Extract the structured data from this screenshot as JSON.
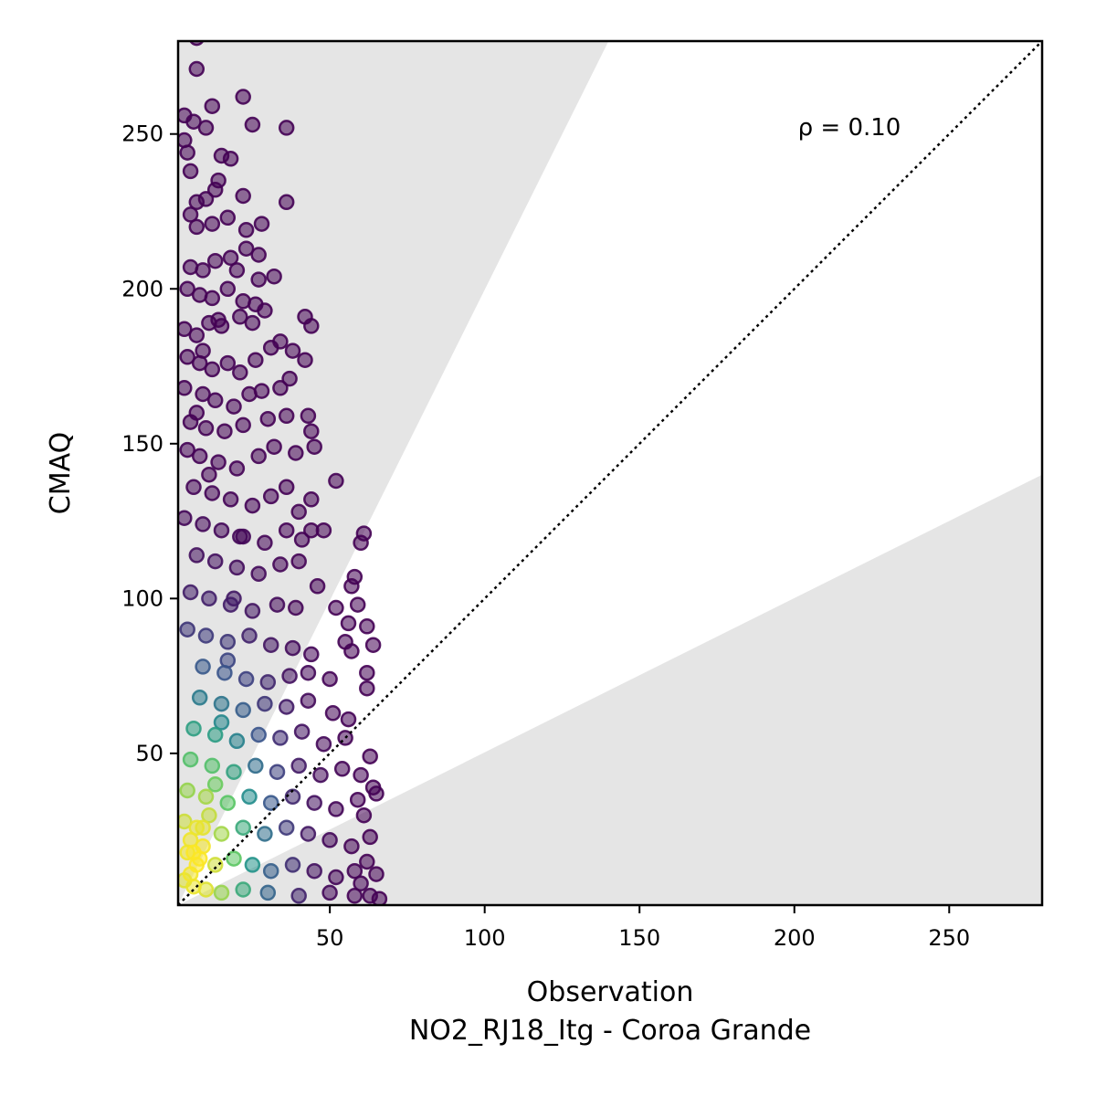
{
  "chart_data": {
    "type": "scatter",
    "title": "",
    "xlabel": "Observation",
    "xlabel_sub": "NO2_RJ18_Itg - Coroa Grande",
    "ylabel": "CMAQ",
    "xlim": [
      1,
      280
    ],
    "ylim": [
      1,
      280
    ],
    "x_ticks": [
      50,
      100,
      150,
      200,
      250
    ],
    "y_ticks": [
      50,
      100,
      150,
      200,
      250
    ],
    "x_tick_labels": [
      "50",
      "100",
      "150",
      "200",
      "250"
    ],
    "y_tick_labels": [
      "50",
      "100",
      "150",
      "200",
      "250"
    ],
    "annotation": "ρ = 0.10",
    "reference_line": {
      "type": "1:1",
      "style": "dotted",
      "color": "#000000"
    },
    "factor_of_2_band": {
      "upper_slope": 2,
      "lower_slope": 0.5,
      "outside_fill": "#e5e5e5"
    },
    "grid": false,
    "legend": "none",
    "colormap": "viridis",
    "marker_alpha": 0.55,
    "points": [
      [
        7,
        281
      ],
      [
        7,
        271
      ],
      [
        3,
        256
      ],
      [
        6,
        254
      ],
      [
        10,
        252
      ],
      [
        12,
        259
      ],
      [
        22,
        262
      ],
      [
        25,
        253
      ],
      [
        36,
        252
      ],
      [
        3,
        248
      ],
      [
        4,
        244
      ],
      [
        5,
        238
      ],
      [
        15,
        243
      ],
      [
        18,
        242
      ],
      [
        7,
        228
      ],
      [
        10,
        229
      ],
      [
        13,
        232
      ],
      [
        14,
        235
      ],
      [
        22,
        230
      ],
      [
        36,
        228
      ],
      [
        5,
        224
      ],
      [
        7,
        220
      ],
      [
        12,
        221
      ],
      [
        17,
        223
      ],
      [
        23,
        219
      ],
      [
        28,
        221
      ],
      [
        18,
        210
      ],
      [
        23,
        213
      ],
      [
        27,
        211
      ],
      [
        5,
        207
      ],
      [
        9,
        206
      ],
      [
        13,
        209
      ],
      [
        20,
        206
      ],
      [
        27,
        203
      ],
      [
        32,
        204
      ],
      [
        4,
        200
      ],
      [
        8,
        198
      ],
      [
        12,
        197
      ],
      [
        17,
        200
      ],
      [
        22,
        196
      ],
      [
        26,
        195
      ],
      [
        29,
        193
      ],
      [
        3,
        187
      ],
      [
        7,
        185
      ],
      [
        11,
        189
      ],
      [
        15,
        188
      ],
      [
        21,
        191
      ],
      [
        25,
        189
      ],
      [
        42,
        191
      ],
      [
        44,
        188
      ],
      [
        4,
        178
      ],
      [
        8,
        176
      ],
      [
        12,
        174
      ],
      [
        17,
        176
      ],
      [
        21,
        173
      ],
      [
        26,
        177
      ],
      [
        31,
        181
      ],
      [
        34,
        183
      ],
      [
        38,
        180
      ],
      [
        42,
        177
      ],
      [
        3,
        168
      ],
      [
        9,
        166
      ],
      [
        13,
        164
      ],
      [
        19,
        162
      ],
      [
        24,
        166
      ],
      [
        28,
        167
      ],
      [
        34,
        168
      ],
      [
        37,
        171
      ],
      [
        5,
        157
      ],
      [
        10,
        155
      ],
      [
        16,
        154
      ],
      [
        22,
        156
      ],
      [
        30,
        158
      ],
      [
        36,
        159
      ],
      [
        43,
        159
      ],
      [
        4,
        148
      ],
      [
        8,
        146
      ],
      [
        14,
        144
      ],
      [
        20,
        142
      ],
      [
        27,
        146
      ],
      [
        32,
        149
      ],
      [
        39,
        147
      ],
      [
        44,
        154
      ],
      [
        45,
        149
      ],
      [
        52,
        138
      ],
      [
        6,
        136
      ],
      [
        12,
        134
      ],
      [
        18,
        132
      ],
      [
        25,
        130
      ],
      [
        31,
        133
      ],
      [
        36,
        136
      ],
      [
        40,
        128
      ],
      [
        44,
        132
      ],
      [
        3,
        126
      ],
      [
        9,
        124
      ],
      [
        15,
        122
      ],
      [
        22,
        120
      ],
      [
        29,
        118
      ],
      [
        36,
        122
      ],
      [
        41,
        119
      ],
      [
        44,
        122
      ],
      [
        48,
        122
      ],
      [
        61,
        121
      ],
      [
        60,
        118
      ],
      [
        7,
        114
      ],
      [
        13,
        112
      ],
      [
        20,
        110
      ],
      [
        27,
        108
      ],
      [
        34,
        111
      ],
      [
        40,
        112
      ],
      [
        46,
        104
      ],
      [
        58,
        107
      ],
      [
        57,
        104
      ],
      [
        5,
        102
      ],
      [
        11,
        100
      ],
      [
        18,
        98
      ],
      [
        25,
        96
      ],
      [
        33,
        98
      ],
      [
        39,
        97
      ],
      [
        52,
        97
      ],
      [
        59,
        98
      ],
      [
        56,
        92
      ],
      [
        62,
        91
      ],
      [
        4,
        90
      ],
      [
        10,
        88
      ],
      [
        17,
        86
      ],
      [
        24,
        88
      ],
      [
        31,
        85
      ],
      [
        38,
        84
      ],
      [
        44,
        82
      ],
      [
        55,
        86
      ],
      [
        64,
        85
      ],
      [
        57,
        83
      ],
      [
        9,
        78
      ],
      [
        16,
        76
      ],
      [
        23,
        74
      ],
      [
        30,
        73
      ],
      [
        37,
        75
      ],
      [
        43,
        76
      ],
      [
        50,
        74
      ],
      [
        62,
        76
      ],
      [
        62,
        71
      ],
      [
        8,
        68
      ],
      [
        15,
        66
      ],
      [
        22,
        64
      ],
      [
        29,
        66
      ],
      [
        36,
        65
      ],
      [
        43,
        67
      ],
      [
        51,
        63
      ],
      [
        56,
        61
      ],
      [
        6,
        58
      ],
      [
        13,
        56
      ],
      [
        20,
        54
      ],
      [
        27,
        56
      ],
      [
        34,
        55
      ],
      [
        41,
        57
      ],
      [
        48,
        53
      ],
      [
        55,
        55
      ],
      [
        63,
        49
      ],
      [
        5,
        48
      ],
      [
        12,
        46
      ],
      [
        19,
        44
      ],
      [
        26,
        46
      ],
      [
        33,
        44
      ],
      [
        40,
        46
      ],
      [
        47,
        43
      ],
      [
        54,
        45
      ],
      [
        60,
        43
      ],
      [
        64,
        39
      ],
      [
        65,
        37
      ],
      [
        4,
        38
      ],
      [
        10,
        36
      ],
      [
        17,
        34
      ],
      [
        24,
        36
      ],
      [
        31,
        34
      ],
      [
        38,
        36
      ],
      [
        45,
        34
      ],
      [
        52,
        32
      ],
      [
        59,
        35
      ],
      [
        61,
        30
      ],
      [
        3,
        28
      ],
      [
        9,
        26
      ],
      [
        15,
        24
      ],
      [
        22,
        26
      ],
      [
        29,
        24
      ],
      [
        36,
        26
      ],
      [
        43,
        24
      ],
      [
        50,
        22
      ],
      [
        57,
        20
      ],
      [
        63,
        23
      ],
      [
        4,
        18
      ],
      [
        8,
        16
      ],
      [
        13,
        14
      ],
      [
        19,
        16
      ],
      [
        25,
        14
      ],
      [
        31,
        12
      ],
      [
        38,
        14
      ],
      [
        45,
        12
      ],
      [
        52,
        10
      ],
      [
        58,
        12
      ],
      [
        62,
        15
      ],
      [
        65,
        11
      ],
      [
        3,
        9
      ],
      [
        6,
        7
      ],
      [
        10,
        6
      ],
      [
        15,
        5
      ],
      [
        22,
        6
      ],
      [
        30,
        5
      ],
      [
        40,
        4
      ],
      [
        50,
        5
      ],
      [
        58,
        4
      ],
      [
        63,
        4
      ],
      [
        66,
        3
      ],
      [
        60,
        8
      ],
      [
        5,
        22
      ],
      [
        6,
        18
      ],
      [
        7,
        14
      ],
      [
        5,
        11
      ],
      [
        7,
        26
      ],
      [
        9,
        20
      ],
      [
        11,
        30
      ],
      [
        13,
        40
      ],
      [
        15,
        60
      ],
      [
        17,
        80
      ],
      [
        19,
        100
      ],
      [
        21,
        120
      ],
      [
        11,
        140
      ],
      [
        7,
        160
      ],
      [
        9,
        180
      ],
      [
        14,
        190
      ]
    ]
  }
}
